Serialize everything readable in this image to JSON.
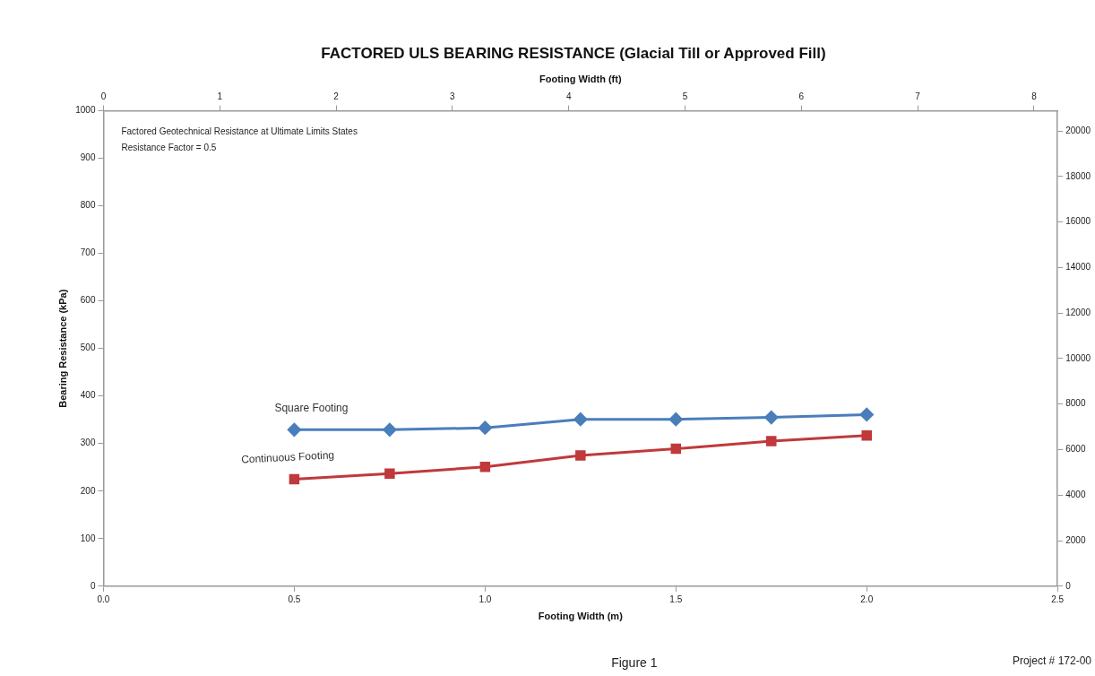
{
  "chart_data": {
    "type": "line",
    "title": "FACTORED ULS BEARING RESISTANCE (Glacial Till or Approved Fill)",
    "xlabel": "Footing Width (m)",
    "ylabel": "Bearing Resistance (kPa)",
    "x2label": "Footing Width (ft)",
    "x": [
      0.5,
      0.75,
      1.0,
      1.25,
      1.5,
      1.75,
      2.0
    ],
    "series": [
      {
        "name": "Square Footing",
        "color": "#4a7ebb",
        "marker": "diamond",
        "values": [
          329,
          329,
          333,
          351,
          351,
          355,
          361
        ]
      },
      {
        "name": "Continuous Footing",
        "color": "#c0393b",
        "marker": "square",
        "values": [
          225,
          237,
          251,
          275,
          289,
          305,
          317
        ]
      }
    ],
    "xlim": [
      0,
      2.5
    ],
    "xticks": [
      {
        "value": 0,
        "label": "0.0"
      },
      {
        "value": 0.5,
        "label": "0.5"
      },
      {
        "value": 1,
        "label": "1.0"
      },
      {
        "value": 1.5,
        "label": "1.5"
      },
      {
        "value": 2,
        "label": "2.0"
      },
      {
        "value": 2.5,
        "label": "2.5"
      }
    ],
    "x2lim": [
      0,
      8.2021
    ],
    "x2ticks": [
      0,
      1,
      2,
      3,
      4,
      5,
      6,
      7,
      8
    ],
    "ylim": [
      0,
      1000
    ],
    "yticks": [
      0,
      100,
      200,
      300,
      400,
      500,
      600,
      700,
      800,
      900,
      1000
    ],
    "y2lim": [
      0,
      20885
    ],
    "y2ticks": [
      0,
      2000,
      4000,
      6000,
      8000,
      10000,
      12000,
      14000,
      16000,
      18000,
      20000
    ],
    "annotations": [
      "Factored Geotechnical Resistance at Ultimate Limits States",
      "Resistance Factor = 0.5",
      "Figure 1",
      "Project # 172-00"
    ],
    "grid": false,
    "legend": false,
    "line_style": "solid"
  }
}
